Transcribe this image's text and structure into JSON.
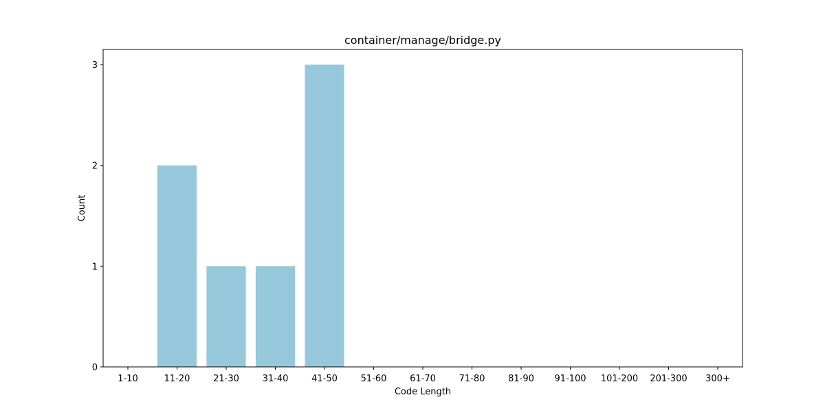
{
  "chart_data": {
    "type": "bar",
    "title": "container/manage/bridge.py",
    "xlabel": "Code Length",
    "ylabel": "Count",
    "categories": [
      "1-10",
      "11-20",
      "21-30",
      "31-40",
      "41-50",
      "51-60",
      "61-70",
      "71-80",
      "81-90",
      "91-100",
      "101-200",
      "201-300",
      "300+"
    ],
    "values": [
      0,
      2,
      1,
      1,
      3,
      0,
      0,
      0,
      0,
      0,
      0,
      0,
      0
    ],
    "ylim": [
      0,
      3.15
    ],
    "yticks": [
      0,
      1,
      2,
      3
    ],
    "grid": false,
    "bar_color": "#96c8dc"
  }
}
